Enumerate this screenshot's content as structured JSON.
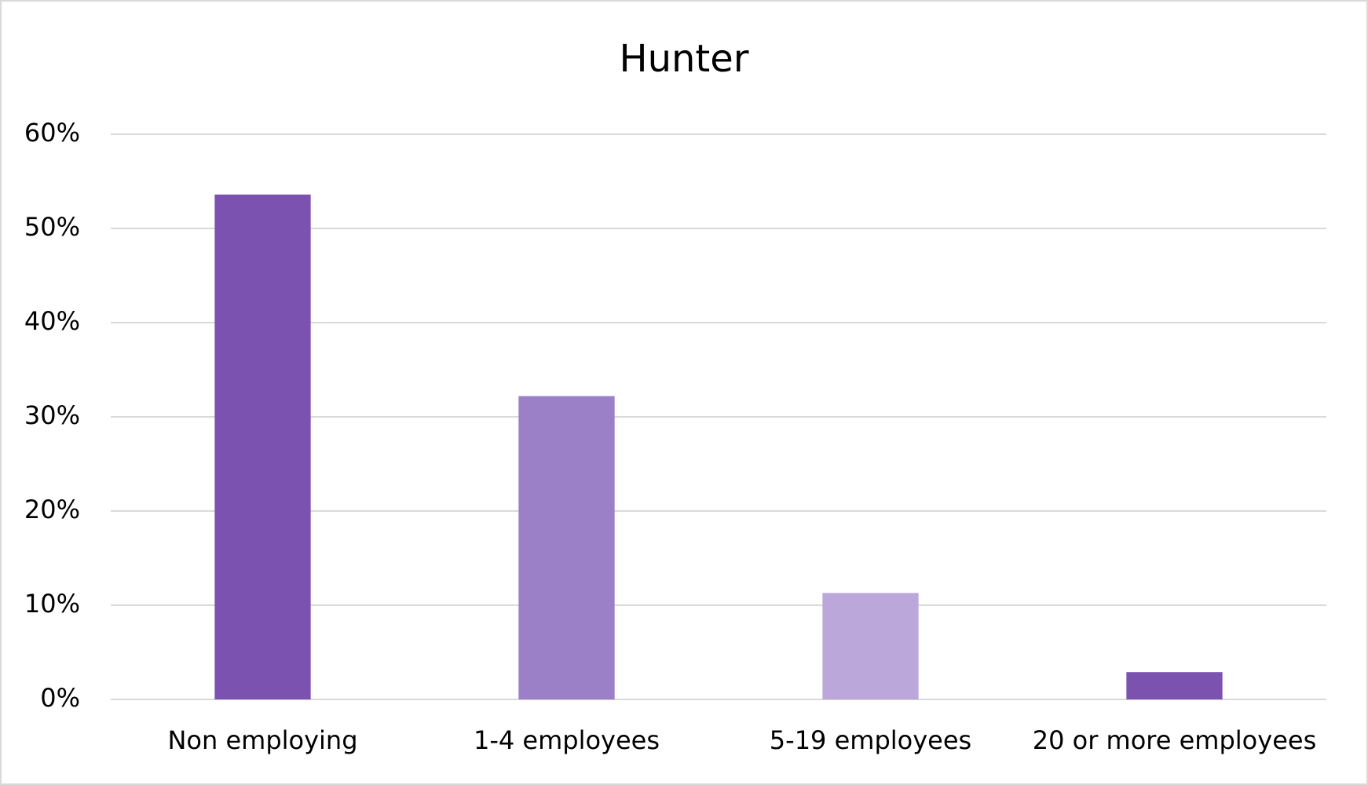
{
  "chart_data": {
    "type": "bar",
    "title": "Hunter",
    "categories": [
      "Non employing",
      "1-4 employees",
      "5-19 employees",
      "20 or more employees"
    ],
    "values": [
      53.6,
      32.2,
      11.3,
      2.9
    ],
    "colors": [
      "#7b52b0",
      "#9b7fc7",
      "#bba7d9",
      "#7b52b0"
    ],
    "ylim": [
      0,
      60
    ],
    "yticks": [
      {
        "value": 0,
        "label": "0%"
      },
      {
        "value": 10,
        "label": "10%"
      },
      {
        "value": 20,
        "label": "20%"
      },
      {
        "value": 30,
        "label": "30%"
      },
      {
        "value": 40,
        "label": "40%"
      },
      {
        "value": 50,
        "label": "50%"
      },
      {
        "value": 60,
        "label": "60%"
      }
    ],
    "grid": true
  }
}
